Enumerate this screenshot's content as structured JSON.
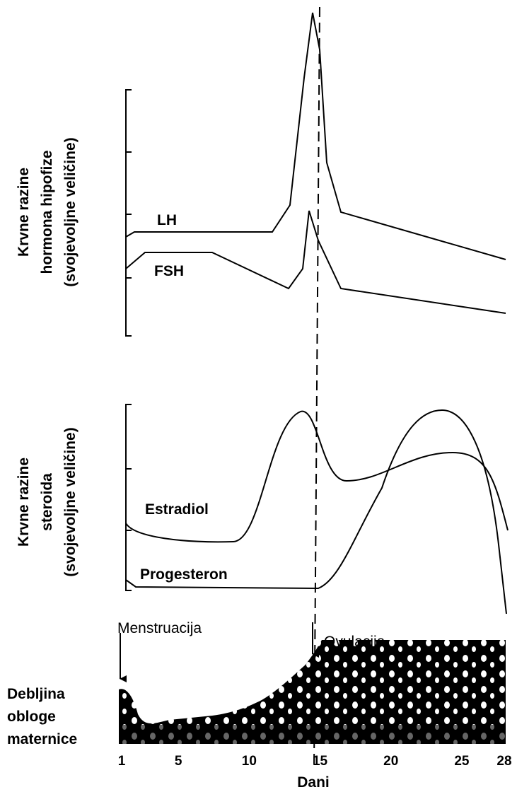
{
  "panels": [
    {
      "axis_label": [
        "Krvne razine",
        "hormona hipofize",
        "(svojevoljne veličine)"
      ],
      "curves": [
        "LH",
        "FSH"
      ]
    },
    {
      "axis_label": [
        "Krvne razine",
        "steroida",
        "(svojevoljne veličine)"
      ],
      "curves": [
        "Estradiol",
        "Progesteron"
      ]
    }
  ],
  "endometrium": {
    "label": [
      "Debljina",
      "obloge",
      "maternice"
    ],
    "events": [
      "Menstruacija",
      "Ovulacija"
    ]
  },
  "x_axis": {
    "label": "Dani",
    "ticks": [
      1,
      5,
      10,
      15,
      20,
      25,
      28
    ]
  }
}
